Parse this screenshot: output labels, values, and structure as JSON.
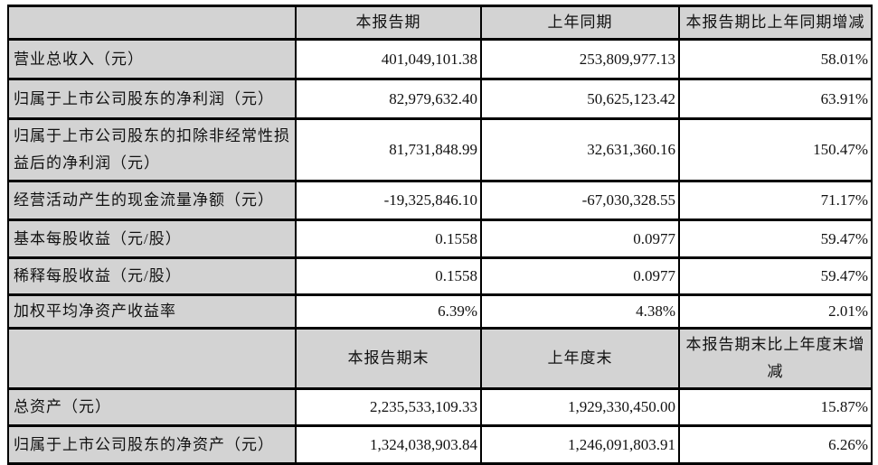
{
  "colors": {
    "header_bg": "#d3d3d3",
    "label_bg": "#d3d3d3",
    "cell_bg": "#ffffff",
    "border": "#000000",
    "text": "#111111"
  },
  "table": {
    "section_results": {
      "header": {
        "blank": "",
        "current": "本报告期",
        "prior": "上年同期",
        "change": "本报告期比上年同期增减"
      },
      "rows": [
        {
          "label": "营业总收入（元）",
          "current": "401,049,101.38",
          "prior": "253,809,977.13",
          "change": "58.01%"
        },
        {
          "label": "归属于上市公司股东的净利润（元）",
          "current": "82,979,632.40",
          "prior": "50,625,123.42",
          "change": "63.91%"
        },
        {
          "label": "归属于上市公司股东的扣除非经常性损益后的净利润（元）",
          "current": "81,731,848.99",
          "prior": "32,631,360.16",
          "change": "150.47%"
        },
        {
          "label": "经营活动产生的现金流量净额（元）",
          "current": "-19,325,846.10",
          "prior": "-67,030,328.55",
          "change": "71.17%"
        },
        {
          "label": "基本每股收益（元/股）",
          "current": "0.1558",
          "prior": "0.0977",
          "change": "59.47%"
        },
        {
          "label": "稀释每股收益（元/股）",
          "current": "0.1558",
          "prior": "0.0977",
          "change": "59.47%"
        },
        {
          "label": "加权平均净资产收益率",
          "current": "6.39%",
          "prior": "4.38%",
          "change": "2.01%"
        }
      ]
    },
    "section_balance": {
      "header": {
        "blank": "",
        "current": "本报告期末",
        "prior": "上年度末",
        "change": "本报告期末比上年度末增减"
      },
      "rows": [
        {
          "label": "总资产（元）",
          "current": "2,235,533,109.33",
          "prior": "1,929,330,450.00",
          "change": "15.87%"
        },
        {
          "label": "归属于上市公司股东的净资产（元）",
          "current": "1,324,038,903.84",
          "prior": "1,246,091,803.91",
          "change": "6.26%"
        }
      ]
    }
  }
}
